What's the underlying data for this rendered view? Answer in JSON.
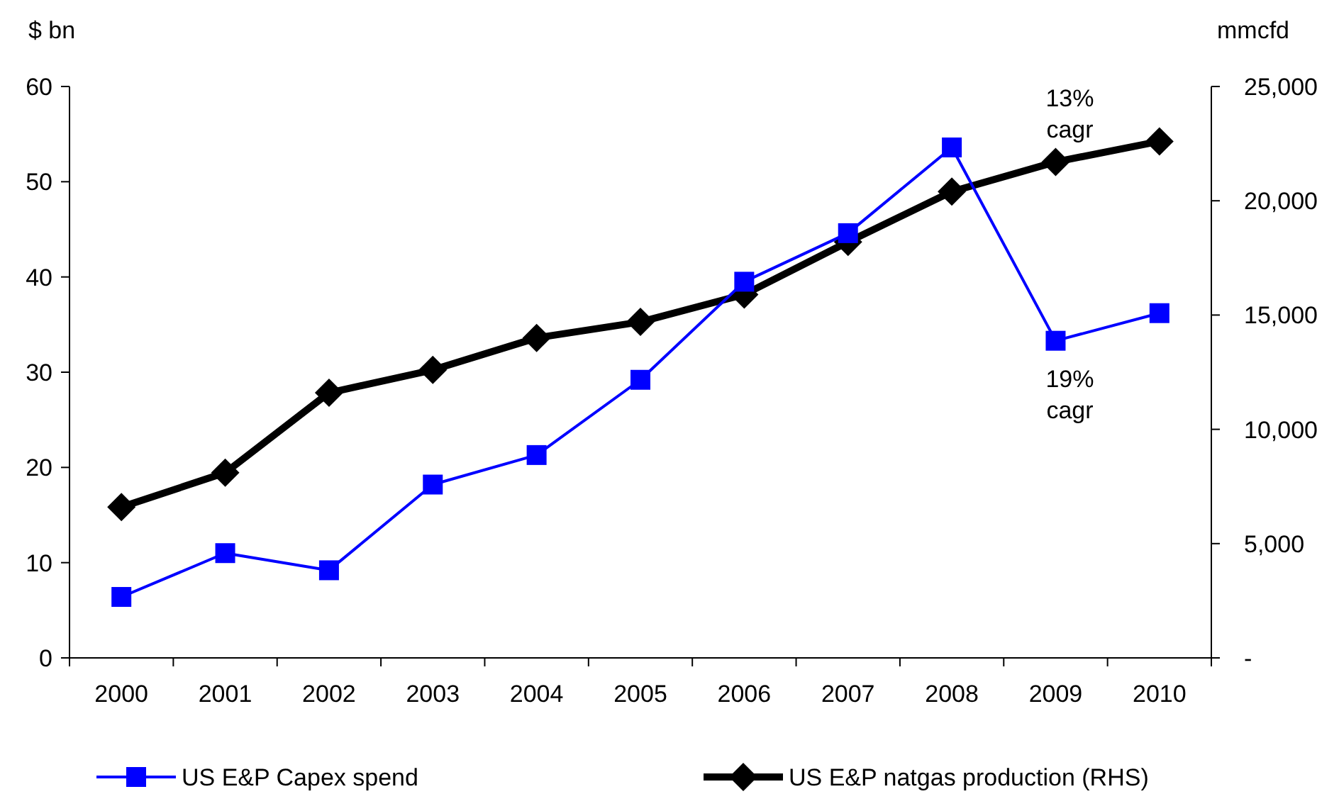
{
  "chart_data": {
    "type": "line",
    "ylabel": "$ bn",
    "y2label": "mmcfd",
    "categories": [
      "2000",
      "2001",
      "2002",
      "2003",
      "2004",
      "2005",
      "2006",
      "2007",
      "2008",
      "2009",
      "2010"
    ],
    "series": [
      {
        "name": "US E&P Capex spend",
        "color": "#0000ff",
        "marker": "square",
        "values": [
          6.4,
          11.0,
          9.2,
          18.2,
          21.3,
          29.2,
          39.5,
          44.6,
          53.6,
          33.3,
          36.2
        ]
      },
      {
        "name": "US E&P natgas production (RHS)",
        "color": "#000000",
        "marker": "diamond",
        "axis": "y2",
        "values": [
          6600,
          8100,
          11600,
          12600,
          14000,
          14700,
          15900,
          18200,
          20400,
          21700,
          22600
        ]
      }
    ],
    "ylim": [
      0,
      60
    ],
    "yticks": [
      0,
      10,
      20,
      30,
      40,
      50,
      60
    ],
    "y2lim": [
      0,
      25000
    ],
    "y2ticks": [
      {
        "value": 0,
        "label": "-"
      },
      {
        "value": 5000,
        "label": "5,000"
      },
      {
        "value": 10000,
        "label": "10,000"
      },
      {
        "value": 15000,
        "label": "15,000"
      },
      {
        "value": 20000,
        "label": "20,000"
      },
      {
        "value": 25000,
        "label": "25,000"
      }
    ],
    "annotations": [
      "13%\ncagr",
      "19%\ncagr"
    ],
    "legend": "bottom",
    "grid": false
  }
}
